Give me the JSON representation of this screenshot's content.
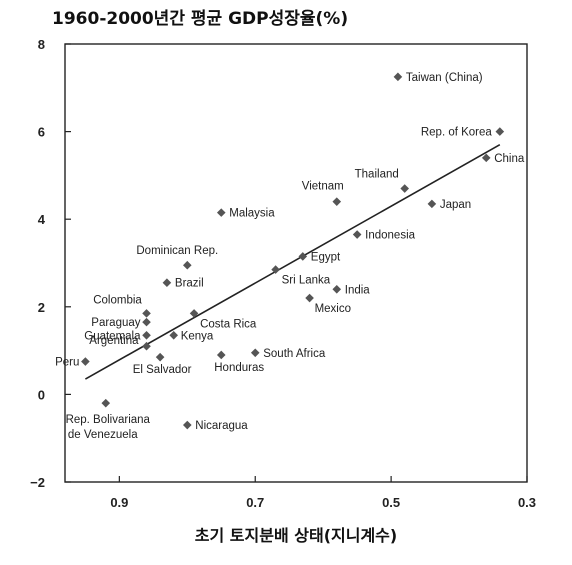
{
  "chart_data": {
    "type": "scatter",
    "title": "1960-2000년간 평균 GDP성장율(%)",
    "xlabel": "초기 토지분배 상태(지니계수)",
    "ylabel": "",
    "xlim": [
      0.98,
      0.3
    ],
    "ylim": [
      -2,
      8
    ],
    "x_reversed": true,
    "x_ticks": [
      "0.9",
      "0.7",
      "0.5",
      "0.3"
    ],
    "y_ticks": [
      "8",
      "6",
      "4",
      "2",
      "0",
      "−2"
    ],
    "grid": false,
    "trendline": {
      "x": [
        0.95,
        0.34
      ],
      "y": [
        0.35,
        5.7
      ]
    },
    "points": [
      {
        "label": "Taiwan (China)",
        "x": 0.49,
        "y": 7.25
      },
      {
        "label": "Rep. of Korea",
        "x": 0.34,
        "y": 6.0
      },
      {
        "label": "China",
        "x": 0.36,
        "y": 5.4
      },
      {
        "label": "Thailand",
        "x": 0.48,
        "y": 4.7
      },
      {
        "label": "Vietnam",
        "x": 0.58,
        "y": 4.4
      },
      {
        "label": "Japan",
        "x": 0.44,
        "y": 4.35
      },
      {
        "label": "Malaysia",
        "x": 0.75,
        "y": 4.15
      },
      {
        "label": "Indonesia",
        "x": 0.55,
        "y": 3.65
      },
      {
        "label": "Egypt",
        "x": 0.63,
        "y": 3.15
      },
      {
        "label": "Dominican Rep.",
        "x": 0.8,
        "y": 2.95
      },
      {
        "label": "Sri Lanka",
        "x": 0.67,
        "y": 2.85
      },
      {
        "label": "Brazil",
        "x": 0.83,
        "y": 2.55
      },
      {
        "label": "India",
        "x": 0.58,
        "y": 2.4
      },
      {
        "label": "Mexico",
        "x": 0.62,
        "y": 2.2
      },
      {
        "label": "Colombia",
        "x": 0.86,
        "y": 1.85
      },
      {
        "label": "Costa Rica",
        "x": 0.79,
        "y": 1.85
      },
      {
        "label": "Paraguay",
        "x": 0.86,
        "y": 1.65
      },
      {
        "label": "Guatemala",
        "x": 0.86,
        "y": 1.35
      },
      {
        "label": "Kenya",
        "x": 0.82,
        "y": 1.35
      },
      {
        "label": "Argentina",
        "x": 0.86,
        "y": 1.1
      },
      {
        "label": "South Africa",
        "x": 0.7,
        "y": 0.95
      },
      {
        "label": "Honduras",
        "x": 0.75,
        "y": 0.9
      },
      {
        "label": "El Salvador",
        "x": 0.84,
        "y": 0.85
      },
      {
        "label": "Peru",
        "x": 0.95,
        "y": 0.75
      },
      {
        "label": "Rep. Bolivariana de Venezuela",
        "x": 0.92,
        "y": -0.2
      },
      {
        "label": "Nicaragua",
        "x": 0.8,
        "y": -0.7
      }
    ]
  }
}
